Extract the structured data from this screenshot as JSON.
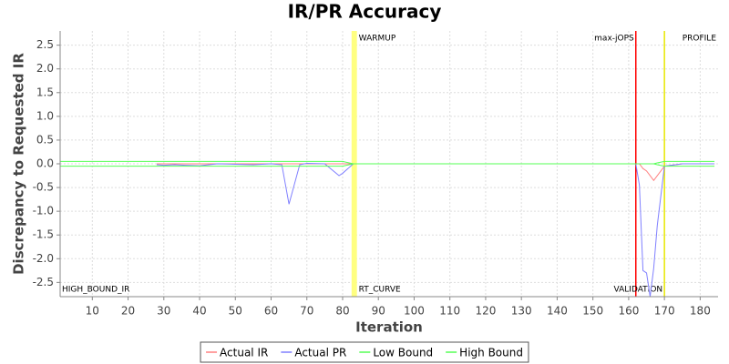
{
  "chart_data": {
    "type": "line",
    "title": "IR/PR Accuracy",
    "x_label": "Iteration",
    "y_label": "Discrepancy to Requested IR",
    "x": [
      1,
      28,
      30,
      33,
      36,
      40,
      45,
      50,
      55,
      60,
      63,
      65,
      68,
      70,
      75,
      79,
      80,
      83,
      90,
      100,
      120,
      140,
      160,
      162,
      163,
      164,
      165,
      166,
      167,
      168,
      170,
      175,
      184
    ],
    "series": [
      {
        "name": "Actual IR",
        "color": "#ff8080",
        "values": [
          null,
          0,
          0,
          0,
          0,
          0,
          0,
          0,
          0,
          0,
          0,
          0,
          0,
          0,
          0,
          0,
          0,
          0,
          0,
          0,
          0,
          0,
          0,
          0,
          0,
          -0.1,
          -0.15,
          -0.25,
          -0.35,
          -0.25,
          -0.05,
          0,
          0
        ]
      },
      {
        "name": "Actual PR",
        "color": "#8080ff",
        "values": [
          null,
          -0.02,
          -0.03,
          -0.02,
          -0.03,
          -0.04,
          0,
          -0.01,
          -0.02,
          0,
          -0.02,
          -0.85,
          -0.02,
          0.01,
          0,
          -0.25,
          -0.2,
          0,
          0,
          0,
          0,
          0,
          0,
          0,
          -0.45,
          -2.25,
          -2.3,
          -2.8,
          -2.2,
          -1.3,
          -0.05,
          0,
          0
        ]
      },
      {
        "name": "Low Bound",
        "color": "#55ff55",
        "values": [
          -0.05,
          -0.05,
          -0.05,
          -0.05,
          -0.05,
          -0.05,
          -0.05,
          -0.05,
          -0.05,
          -0.05,
          -0.05,
          -0.05,
          -0.05,
          -0.05,
          -0.05,
          -0.05,
          -0.05,
          0,
          0,
          0,
          0,
          0,
          0,
          0,
          0,
          0,
          0,
          0,
          0,
          -0.02,
          -0.05,
          -0.05,
          -0.05
        ]
      },
      {
        "name": "High Bound",
        "color": "#55ff55",
        "values": [
          0.05,
          0.05,
          0.05,
          0.05,
          0.05,
          0.05,
          0.05,
          0.05,
          0.05,
          0.05,
          0.05,
          0.05,
          0.05,
          0.05,
          0.05,
          0.05,
          0.05,
          0,
          0,
          0,
          0,
          0,
          0,
          0,
          0,
          0,
          0,
          0,
          0,
          0.02,
          0.05,
          0.05,
          0.05
        ]
      }
    ],
    "markers": [
      {
        "x": 1,
        "bottom_label": {
          "text": "HIGH_BOUND_IR",
          "side": "right"
        }
      },
      {
        "x": [
          82.5,
          84
        ],
        "color": "#ffff80",
        "top_label": {
          "text": "WARMUP",
          "side": "right"
        },
        "bottom_label": {
          "text": "RT_CURVE",
          "side": "right"
        }
      },
      {
        "x": 162,
        "color": "#ff0000",
        "top_label": {
          "text": "max-jOPS",
          "side": "left"
        }
      },
      {
        "x": 170,
        "color": "#e8e800",
        "top_label": {
          "text": "PROFILE",
          "side": "end"
        },
        "bottom_label": {
          "text": "VALIDATION",
          "side": "left"
        }
      }
    ],
    "xlim": [
      1,
      185
    ],
    "ylim": [
      -2.8,
      2.8
    ],
    "xticks": [
      10,
      20,
      30,
      40,
      50,
      60,
      70,
      80,
      90,
      100,
      110,
      120,
      130,
      140,
      150,
      160,
      170,
      180
    ],
    "yticks": [
      {
        "value": -2.5,
        "label": "-2.5"
      },
      {
        "value": -2,
        "label": "-2.0"
      },
      {
        "value": -1.5,
        "label": "-1.5"
      },
      {
        "value": -1,
        "label": "-1.0"
      },
      {
        "value": -0.5,
        "label": "-0.5"
      },
      {
        "value": 0,
        "label": "0.0"
      },
      {
        "value": 0.5,
        "label": "0.5"
      },
      {
        "value": 1,
        "label": "1.0"
      },
      {
        "value": 1.5,
        "label": "1.5"
      },
      {
        "value": 2,
        "label": "2.0"
      },
      {
        "value": 2.5,
        "label": "2.5"
      }
    ],
    "grid": true,
    "legend": "bottom"
  }
}
